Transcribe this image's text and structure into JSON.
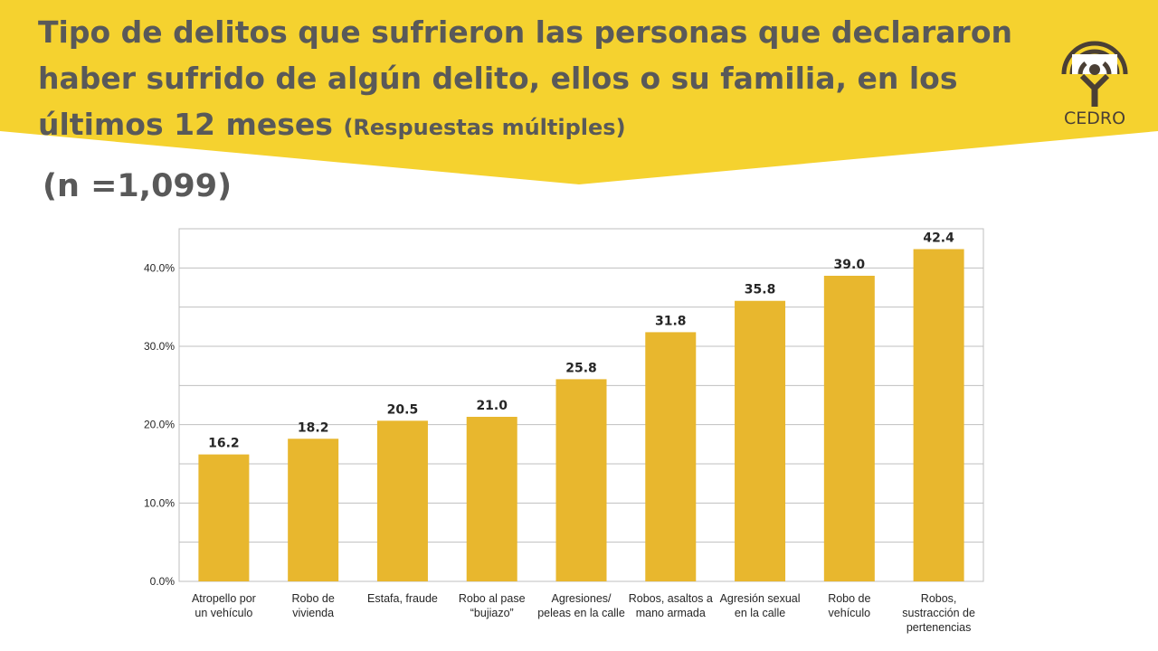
{
  "header": {
    "title": "Tipo de delitos que sufrieron las personas que declararon haber sufrido de algún delito, ellos o su familia, en los últimos 12 meses",
    "title_suffix": "(Respuestas múltiples)",
    "sample": "(n =1,099)",
    "logo_text": "CEDRO"
  },
  "colors": {
    "banner": "#F5D22F",
    "bar": "#E8B72E",
    "text": "#595959",
    "grid": "#BFBFBF",
    "logo": "#4A3F35"
  },
  "chart_data": {
    "type": "bar",
    "categories": [
      [
        "Atropello por",
        "un vehículo"
      ],
      [
        "Robo de",
        "vivienda"
      ],
      [
        "Estafa, fraude"
      ],
      [
        "Robo al pase",
        "“bujiazo”"
      ],
      [
        "Agresiones/",
        "peleas en la calle"
      ],
      [
        "Robos, asaltos a",
        "mano armada"
      ],
      [
        "Agresión sexual",
        "en la calle"
      ],
      [
        "Robo de",
        "vehículo"
      ],
      [
        "Robos,",
        "sustracción de",
        "pertenencias"
      ]
    ],
    "values": [
      16.2,
      18.2,
      20.5,
      21.0,
      25.8,
      31.8,
      35.8,
      39.0,
      42.4
    ],
    "value_labels": [
      "16.2",
      "18.2",
      "20.5",
      "21.0",
      "25.8",
      "31.8",
      "35.8",
      "39.0",
      "42.4"
    ],
    "ylim": [
      0,
      45
    ],
    "yticks": [
      0,
      10,
      20,
      30,
      40
    ],
    "ytick_labels": [
      "0.0%",
      "10.0%",
      "20.0%",
      "30.0%",
      "40.0%"
    ],
    "grid": true,
    "minor_grid_step": 5
  }
}
